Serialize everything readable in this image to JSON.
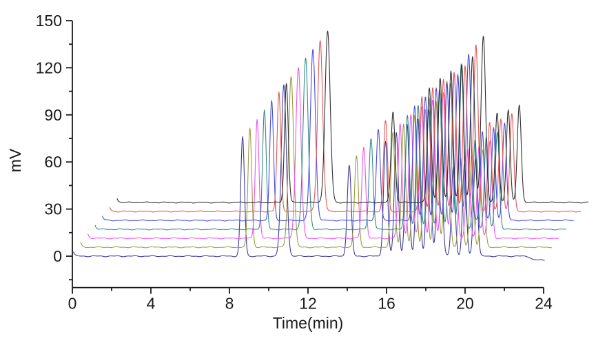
{
  "chart_data": {
    "type": "line",
    "title": "",
    "xlabel": "Time(min)",
    "ylabel": "mV",
    "xlim": [
      0,
      24
    ],
    "ylim": [
      -20,
      150
    ],
    "grid": false,
    "legend": "none",
    "x_ticks_major": [
      0,
      4,
      8,
      12,
      16,
      20,
      24
    ],
    "x_ticks_minor": [
      2,
      6,
      10,
      14,
      18,
      22
    ],
    "y_ticks_major": [
      0,
      30,
      60,
      90,
      120,
      150
    ],
    "y_ticks_minor": [
      -15,
      15,
      45,
      75,
      105,
      135
    ],
    "axis_color": "#1a1a1a",
    "description": "Seven replicate chromatogram runs, each shifted +0.37 min in time and +5.7 mV in signal",
    "run_duration_min": 24,
    "series": [
      {
        "name": "run-1",
        "color": "#3C3C9C",
        "x_offset": 0.05,
        "y_offset": 0.0,
        "end_dip": true
      },
      {
        "name": "run-2",
        "color": "#9C9C44",
        "x_offset": 0.42,
        "y_offset": 5.7,
        "end_dip": false
      },
      {
        "name": "run-3",
        "color": "#EE55EE",
        "x_offset": 0.79,
        "y_offset": 11.4,
        "end_dip": false
      },
      {
        "name": "run-4",
        "color": "#348A8A",
        "x_offset": 1.16,
        "y_offset": 17.1,
        "end_dip": false
      },
      {
        "name": "run-5",
        "color": "#4A4ADF",
        "x_offset": 1.53,
        "y_offset": 22.8,
        "end_dip": false
      },
      {
        "name": "run-6",
        "color": "#E85555",
        "x_offset": 1.9,
        "y_offset": 28.5,
        "end_dip": false
      },
      {
        "name": "run-7",
        "color": "#303030",
        "x_offset": 2.28,
        "y_offset": 34.2,
        "end_dip": false
      }
    ],
    "reference_peaks": [
      {
        "t": 8.62,
        "h": 76,
        "sigma": 0.095
      },
      {
        "t": 10.72,
        "h": 109,
        "sigma": 0.13
      },
      {
        "t": 14.05,
        "h": 58,
        "sigma": 0.1
      },
      {
        "t": 15.9,
        "h": 73,
        "sigma": 0.1
      },
      {
        "t": 16.45,
        "h": 79,
        "sigma": 0.1
      },
      {
        "t": 17.0,
        "h": 84,
        "sigma": 0.1
      },
      {
        "t": 17.55,
        "h": 88,
        "sigma": 0.1
      },
      {
        "t": 18.1,
        "h": 93,
        "sigma": 0.105
      },
      {
        "t": 18.65,
        "h": 106,
        "sigma": 0.115
      },
      {
        "t": 19.35,
        "h": 57,
        "sigma": 0.095
      },
      {
        "t": 19.92,
        "h": 59,
        "sigma": 0.095
      },
      {
        "t": 20.48,
        "h": 62,
        "sigma": 0.1
      }
    ],
    "start_spike_mv": 2.8,
    "end_dip_mv": 2.5,
    "noise_mv": 0.25
  }
}
